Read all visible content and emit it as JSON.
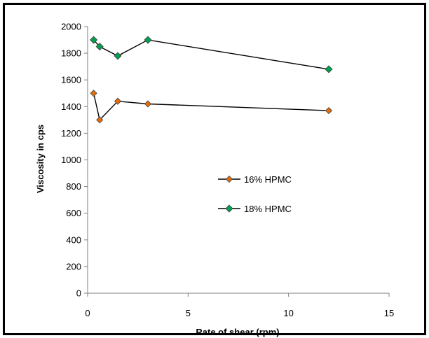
{
  "chart_data": {
    "type": "scatter",
    "xlabel": "Rate of shear (rpm)",
    "ylabel": "Viscosity in cps",
    "xlim": [
      0,
      15
    ],
    "ylim": [
      0,
      2000
    ],
    "xticks": [
      0,
      5,
      10,
      15
    ],
    "yticks": [
      0,
      200,
      400,
      600,
      800,
      1000,
      1200,
      1400,
      1600,
      1800,
      2000
    ],
    "grid": false,
    "legend_position": "center-right",
    "series": [
      {
        "name": "16% HPMC",
        "color": "#E36C0A",
        "marker": "diamond",
        "x": [
          0.3,
          0.6,
          1.5,
          3,
          12
        ],
        "y": [
          1500,
          1300,
          1440,
          1420,
          1370
        ]
      },
      {
        "name": "18% HPMC",
        "color": "#00A050",
        "marker": "diamond",
        "x": [
          0.3,
          0.6,
          1.5,
          3,
          12
        ],
        "y": [
          1900,
          1850,
          1780,
          1900,
          1680
        ]
      }
    ]
  }
}
